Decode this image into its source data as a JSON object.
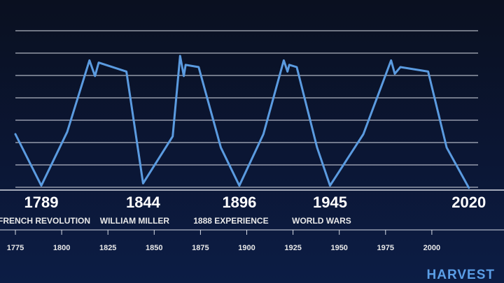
{
  "brand": "HARVEST",
  "colors": {
    "line": "#5b9be0",
    "grid": "#d8dce6",
    "axis": "#d8dce6",
    "text": "#ffffff",
    "brand": "#5b9ee6"
  },
  "chart_data": {
    "type": "line",
    "title": "",
    "xlabel": "",
    "ylabel": "",
    "xlim": [
      1775,
      2025
    ],
    "ylim": [
      0,
      8
    ],
    "grid": true,
    "x_ticks": [
      1775,
      1800,
      1825,
      1850,
      1875,
      1900,
      1925,
      1950,
      1975,
      2000
    ],
    "series": [
      {
        "values": [
          [
            1775,
            2.5
          ],
          [
            1789,
            0.2
          ],
          [
            1803,
            2.6
          ],
          [
            1815,
            5.8
          ],
          [
            1818,
            5.1
          ],
          [
            1820,
            5.7
          ],
          [
            1835,
            5.3
          ],
          [
            1844,
            0.3
          ],
          [
            1860,
            2.4
          ],
          [
            1864,
            6.0
          ],
          [
            1866,
            5.1
          ],
          [
            1867,
            5.6
          ],
          [
            1874,
            5.5
          ],
          [
            1886,
            1.9
          ],
          [
            1896,
            0.2
          ],
          [
            1909,
            2.5
          ],
          [
            1920,
            5.8
          ],
          [
            1922,
            5.3
          ],
          [
            1923,
            5.6
          ],
          [
            1927,
            5.5
          ],
          [
            1938,
            1.9
          ],
          [
            1945,
            0.2
          ],
          [
            1963,
            2.5
          ],
          [
            1978,
            5.8
          ],
          [
            1980,
            5.2
          ],
          [
            1983,
            5.5
          ],
          [
            1998,
            5.3
          ],
          [
            2008,
            1.9
          ],
          [
            2020,
            0.1
          ]
        ]
      }
    ],
    "annotations": [
      {
        "year": "1789",
        "event": "FRENCH REVOLUTION"
      },
      {
        "year": "1844",
        "event": "WILLIAM MILLER"
      },
      {
        "year": "1896",
        "event": "1888 EXPERIENCE"
      },
      {
        "year": "1945",
        "event": "WORLD WARS"
      },
      {
        "year": "2020",
        "event": ""
      }
    ]
  }
}
